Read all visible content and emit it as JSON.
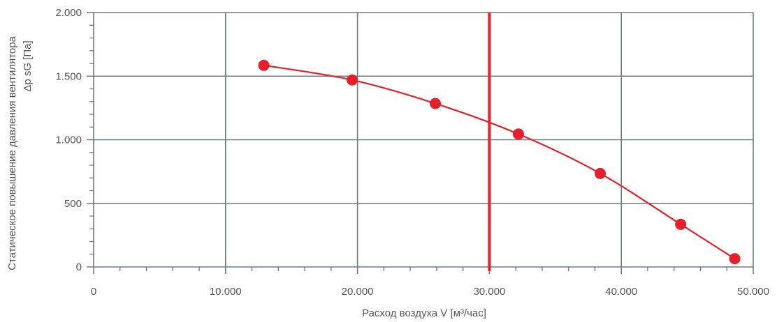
{
  "chart_data": {
    "type": "line",
    "xlabel": "Расход воздуха V [м³/час]",
    "ylabel_lines": [
      "Статическое повышение давления вентилятора",
      "Δp sG [Па]"
    ],
    "xlim": [
      0,
      50000
    ],
    "ylim": [
      0,
      2000
    ],
    "x_ticks": [
      0,
      10000,
      20000,
      30000,
      40000,
      50000
    ],
    "x_tick_labels": [
      "0",
      "10.000",
      "20.000",
      "30.000",
      "40.000",
      "50.000"
    ],
    "y_ticks": [
      0,
      500,
      1000,
      1500,
      2000
    ],
    "y_tick_labels": [
      "0",
      "500",
      "1.000",
      "1.500",
      "2.000"
    ],
    "grid": true,
    "reference_line_x": 30000,
    "series": [
      {
        "x": [
          12900,
          19600,
          25900,
          32200,
          38400,
          44500,
          48600
        ],
        "y": [
          1585,
          1470,
          1285,
          1045,
          735,
          335,
          65
        ],
        "color": "#e3202b"
      }
    ]
  }
}
